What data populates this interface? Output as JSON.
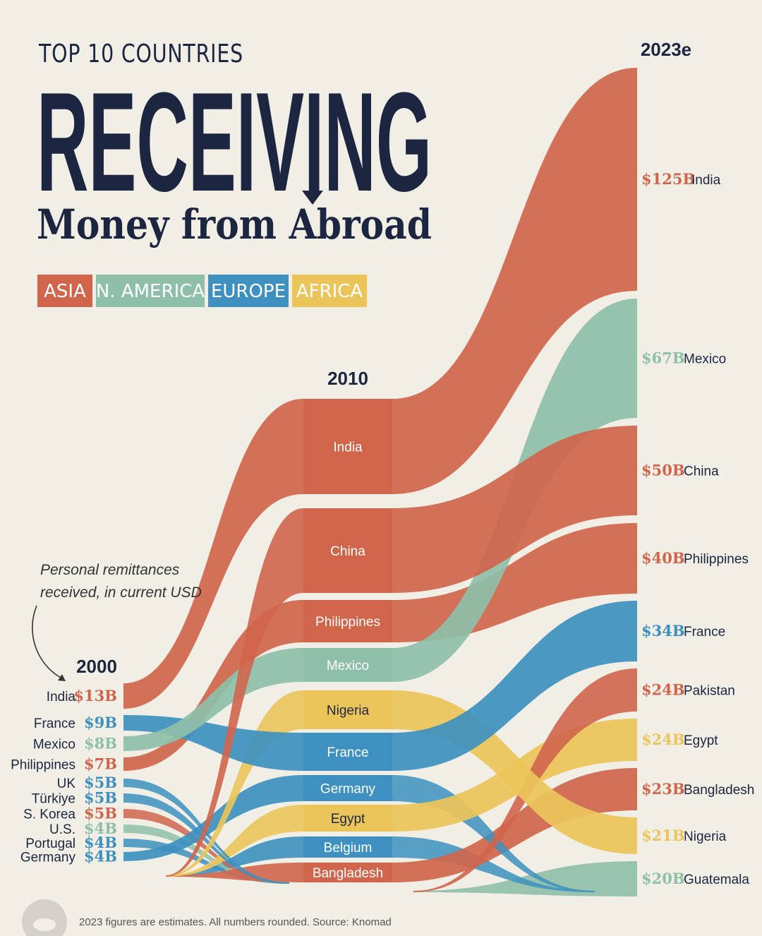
{
  "header": {
    "pretitle": "TOP 10 COUNTRIES",
    "title": "RECEIVING",
    "subtitle": "Money from Abroad"
  },
  "legend": [
    {
      "label": "ASIA",
      "color": "#d0654c"
    },
    {
      "label": "N. AMERICA",
      "color": "#8ebfa8"
    },
    {
      "label": "EUROPE",
      "color": "#3d90bf"
    },
    {
      "label": "AFRICA",
      "color": "#ebc45a"
    }
  ],
  "annotation": "Personal remittances received, in current USD",
  "annotation_lines": [
    "Personal remittances",
    "received, in current USD"
  ],
  "footer": "2023 figures are estimates. All numbers rounded. Source: Knomad",
  "colors": {
    "asia": "#d0654c",
    "n_america": "#8ebfa8",
    "europe": "#3d90bf",
    "africa": "#ebc45a",
    "title": "#1d2640",
    "background": "#f1eee6"
  },
  "chart_data": {
    "type": "sankey-bump",
    "unit": "USD",
    "years": [
      "2000",
      "2010",
      "2023e"
    ],
    "rankings": {
      "2000": [
        {
          "country": "India",
          "value": 13,
          "label": "$13B",
          "region": "asia"
        },
        {
          "country": "France",
          "value": 9,
          "label": "$9B",
          "region": "europe"
        },
        {
          "country": "Mexico",
          "value": 8,
          "label": "$8B",
          "region": "n_america"
        },
        {
          "country": "Philippines",
          "value": 7,
          "label": "$7B",
          "region": "asia"
        },
        {
          "country": "UK",
          "value": 5,
          "label": "$5B",
          "region": "europe"
        },
        {
          "country": "Türkiye",
          "value": 5,
          "label": "$5B",
          "region": "europe"
        },
        {
          "country": "S. Korea",
          "value": 5,
          "label": "$5B",
          "region": "asia"
        },
        {
          "country": "U.S.",
          "value": 4,
          "label": "$4B",
          "region": "n_america"
        },
        {
          "country": "Portugal",
          "value": 4,
          "label": "$4B",
          "region": "europe"
        },
        {
          "country": "Germany",
          "value": 4,
          "label": "$4B",
          "region": "europe"
        }
      ],
      "2010": [
        {
          "country": "India",
          "region": "asia"
        },
        {
          "country": "China",
          "region": "asia"
        },
        {
          "country": "Philippines",
          "region": "asia"
        },
        {
          "country": "Mexico",
          "region": "n_america"
        },
        {
          "country": "Nigeria",
          "region": "africa"
        },
        {
          "country": "France",
          "region": "europe"
        },
        {
          "country": "Germany",
          "region": "europe"
        },
        {
          "country": "Egypt",
          "region": "africa"
        },
        {
          "country": "Belgium",
          "region": "europe"
        },
        {
          "country": "Bangladesh",
          "region": "asia"
        }
      ],
      "2023e": [
        {
          "country": "India",
          "value": 125,
          "label": "$125B",
          "region": "asia"
        },
        {
          "country": "Mexico",
          "value": 67,
          "label": "$67B",
          "region": "n_america"
        },
        {
          "country": "China",
          "value": 50,
          "label": "$50B",
          "region": "asia"
        },
        {
          "country": "Philippines",
          "value": 40,
          "label": "$40B",
          "region": "asia"
        },
        {
          "country": "France",
          "value": 34,
          "label": "$34B",
          "region": "europe"
        },
        {
          "country": "Pakistan",
          "value": 24,
          "label": "$24B",
          "region": "asia"
        },
        {
          "country": "Egypt",
          "value": 24,
          "label": "$24B",
          "region": "africa"
        },
        {
          "country": "Bangladesh",
          "value": 23,
          "label": "$23B",
          "region": "asia"
        },
        {
          "country": "Nigeria",
          "value": 21,
          "label": "$21B",
          "region": "africa"
        },
        {
          "country": "Guatemala",
          "value": 20,
          "label": "$20B",
          "region": "n_america"
        }
      ]
    }
  }
}
